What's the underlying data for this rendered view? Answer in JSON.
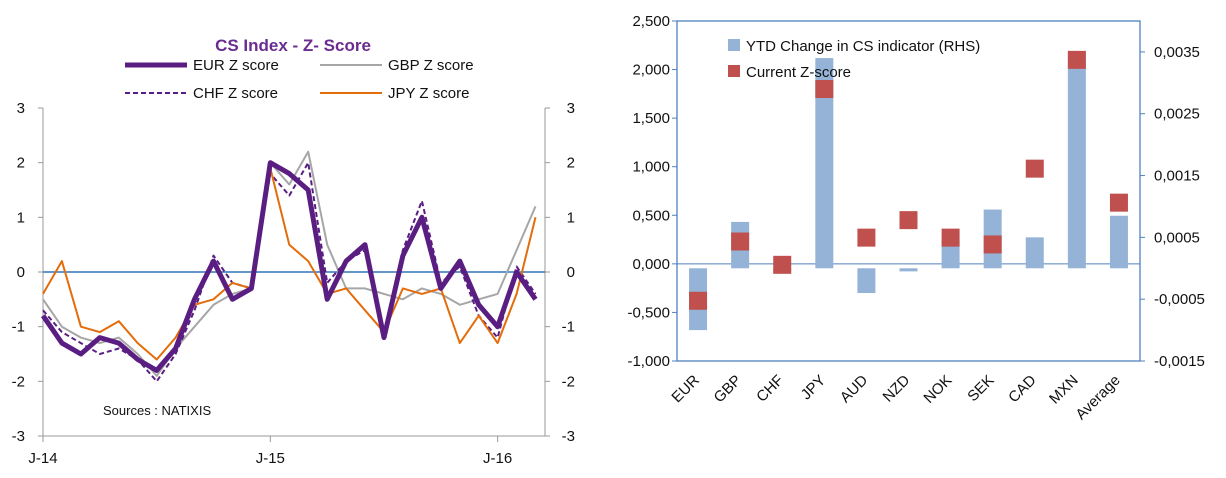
{
  "colors": {
    "eur": "#5a1e82",
    "gbp": "#a6a6a6",
    "chf": "#5a1e82",
    "jpy": "#e46c0a",
    "zero_line": "#2e75b6",
    "axis_frame": "#4f81bd",
    "bar": "#95b3d7",
    "marker": "#c0504d",
    "title": "#6b2c91"
  },
  "chart_data": [
    {
      "type": "line",
      "title": "CS Index - Z- Score",
      "source": "Sources : NATIXIS",
      "x_ticks": [
        "J-14",
        "J-15",
        "J-16"
      ],
      "y_ticks": [
        "-3",
        "-2",
        "-1",
        "0",
        "1",
        "2",
        "3"
      ],
      "y_ticks_right": [
        "-3",
        "-2",
        "-1",
        "0",
        "1",
        "2",
        "3"
      ],
      "ylim": [
        -3,
        3
      ],
      "xlim": [
        0,
        26.5
      ],
      "x_unit": "months since J-14",
      "series": [
        {
          "name": "EUR Z score",
          "style": "thick",
          "x": [
            0,
            1,
            2,
            3,
            4,
            5,
            6,
            7,
            8,
            9,
            10,
            11,
            12,
            13,
            14,
            15,
            16,
            17,
            18,
            19,
            20,
            21,
            22,
            23,
            24,
            25,
            26
          ],
          "y": [
            -0.8,
            -1.3,
            -1.5,
            -1.2,
            -1.3,
            -1.6,
            -1.8,
            -1.4,
            -0.5,
            0.2,
            -0.5,
            -0.3,
            2.0,
            1.8,
            1.5,
            -0.5,
            0.2,
            0.5,
            -1.2,
            0.3,
            1.0,
            -0.3,
            0.2,
            -0.6,
            -1.0,
            0.0,
            -0.5
          ]
        },
        {
          "name": "GBP Z score",
          "style": "thin",
          "x": [
            0,
            1,
            2,
            3,
            4,
            5,
            6,
            7,
            8,
            9,
            10,
            11,
            12,
            13,
            14,
            15,
            16,
            17,
            18,
            19,
            20,
            21,
            22,
            23,
            24,
            25,
            26
          ],
          "y": [
            -0.5,
            -1.0,
            -1.2,
            -1.3,
            -1.2,
            -1.5,
            -1.9,
            -1.4,
            -1.0,
            -0.6,
            -0.4,
            -0.3,
            2.0,
            1.6,
            2.2,
            0.5,
            -0.3,
            -0.3,
            -0.4,
            -0.5,
            -0.3,
            -0.4,
            -0.6,
            -0.5,
            -0.4,
            0.4,
            1.2
          ]
        },
        {
          "name": "CHF Z score",
          "style": "dashed",
          "x": [
            0,
            1,
            2,
            3,
            4,
            5,
            6,
            7,
            8,
            9,
            10,
            11,
            12,
            13,
            14,
            15,
            16,
            17,
            18,
            19,
            20,
            21,
            22,
            23,
            24,
            25,
            26
          ],
          "y": [
            -0.7,
            -1.1,
            -1.3,
            -1.5,
            -1.4,
            -1.6,
            -2.0,
            -1.5,
            -0.7,
            0.3,
            -0.2,
            -0.3,
            1.8,
            1.4,
            2.0,
            -0.2,
            0.2,
            0.4,
            -1.1,
            0.4,
            1.3,
            -0.2,
            0.1,
            -0.8,
            -1.2,
            0.1,
            -0.4
          ]
        },
        {
          "name": "JPY Z score",
          "style": "solid",
          "x": [
            0,
            1,
            2,
            3,
            4,
            5,
            6,
            7,
            8,
            9,
            10,
            11,
            12,
            13,
            14,
            15,
            16,
            17,
            18,
            19,
            20,
            21,
            22,
            23,
            24,
            25,
            26
          ],
          "y": [
            -0.4,
            0.2,
            -1.0,
            -1.1,
            -0.9,
            -1.3,
            -1.6,
            -1.2,
            -0.6,
            -0.5,
            -0.2,
            -0.3,
            1.9,
            0.5,
            0.2,
            -0.4,
            -0.3,
            -0.7,
            -1.1,
            -0.3,
            -0.4,
            -0.3,
            -1.3,
            -0.8,
            -1.3,
            -0.4,
            1.0
          ]
        }
      ],
      "legend": "top"
    },
    {
      "type": "bar",
      "categories": [
        "EUR",
        "GBP",
        "CHF",
        "JPY",
        "AUD",
        "NZD",
        "NOK",
        "SEK",
        "CAD",
        "MXN",
        "Average"
      ],
      "series": [
        {
          "name": "YTD Change in CS indicator  (RHS)",
          "axis": "right",
          "values": [
            -0.001,
            0.00075,
            -5e-05,
            0.0034,
            -0.0004,
            -5e-05,
            0.00045,
            0.00095,
            0.0005,
            0.0035,
            0.00085
          ]
        },
        {
          "name": "Current Z-score",
          "axis": "left",
          "values": [
            -0.38,
            0.23,
            -0.01,
            1.8,
            0.27,
            0.45,
            0.27,
            0.2,
            0.98,
            2.1,
            0.63
          ]
        }
      ],
      "y_ticks_left": [
        "-1,000",
        "-0,500",
        "0,000",
        "0,500",
        "1,000",
        "1,500",
        "2,000",
        "2,500"
      ],
      "y_ticks_right": [
        "-0,0015",
        "-0,0005",
        "0,0005",
        "0,0015",
        "0,0025",
        "0,0035"
      ],
      "ylim_left": [
        -1,
        2.5
      ],
      "ylim_right": [
        -0.0015,
        0.004
      ],
      "legend": "top-left"
    }
  ]
}
